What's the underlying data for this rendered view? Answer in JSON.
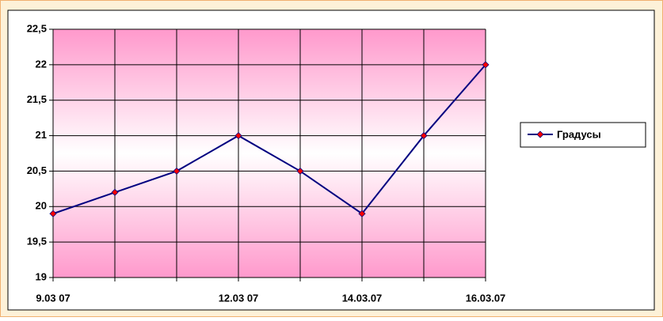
{
  "chart_data": {
    "type": "line",
    "categories": [
      "9.03 07",
      null,
      null,
      "12.03 07",
      null,
      "14.03.07",
      null,
      "16.03.07"
    ],
    "series": [
      {
        "name": "Градусы",
        "color": "#000080",
        "marker_color": "#ff0000",
        "values": [
          19.9,
          20.2,
          20.5,
          21,
          20.5,
          19.9,
          21,
          22
        ]
      }
    ],
    "ylim": [
      19,
      22.5
    ],
    "yticks": [
      19,
      {
        "value": 19.5,
        "label": "19,5"
      },
      20,
      {
        "value": 20.5,
        "label": "20,5"
      },
      21,
      {
        "value": 21.5,
        "label": "21,5"
      },
      22,
      {
        "value": 22.5,
        "label": "22,5"
      }
    ],
    "grid": true,
    "legend": "right"
  }
}
